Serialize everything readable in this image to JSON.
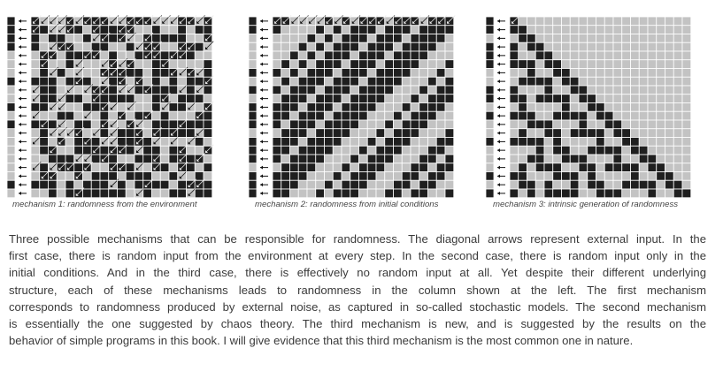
{
  "figure": {
    "panels": [
      {
        "caption": "mechanism 1: randomness from the environment",
        "mechanism": "external input at every step",
        "colors": {
          "black": "#1f1f1f",
          "gray": "#c3c3c3"
        }
      },
      {
        "caption": "mechanism 2: randomness from initial conditions",
        "mechanism": "random initial conditions, diagonal bands",
        "colors": {
          "black": "#1f1f1f",
          "gray": "#c3c3c3"
        }
      },
      {
        "caption": "mechanism 3: intrinsic generation of randomness",
        "mechanism": "intrinsic generation, triangular pattern",
        "colors": {
          "black": "#1f1f1f",
          "gray": "#c3c3c3"
        }
      }
    ],
    "icons": [
      "left-arrow-icon",
      "diagonal-arrow-icon"
    ]
  },
  "paragraph": {
    "lines": [
      "Three possible mechanisms that can be responsible for randomness. The diagonal arrows represent external input. In the",
      "first case, there is random input from the environment at every step. In the second case, there is random input only in the",
      "initial conditions. And in the third case, there is effectively no random input at all. Yet despite their different underlying",
      "structure, each of these mechanisms leads to randomness in the column shown at the left. The first mechanism",
      "corresponds to randomness produced by external noise, as captured in so-called stochastic models. The second mechanism",
      "is essentially the one suggested by chaos theory. The third mechanism is new, and is suggested by the results on the",
      "behavior of simple programs in this book. I will give evidence that this third mechanism is the most common one in nature."
    ]
  }
}
